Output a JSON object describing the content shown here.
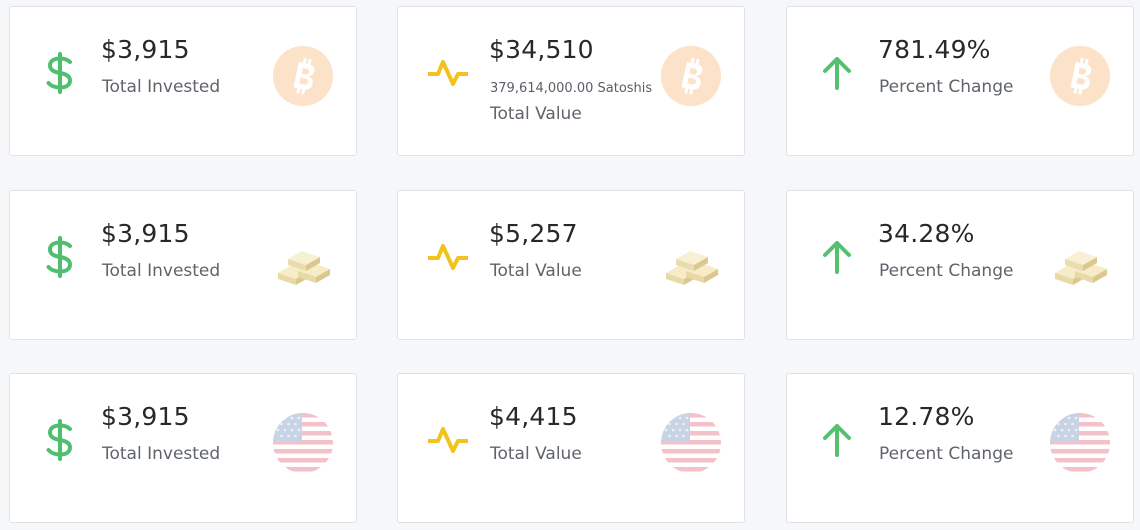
{
  "colors": {
    "dollar": "#4fbf6f",
    "pulse": "#f2c31c",
    "arrow": "#57c06f",
    "bitcoin": "#fbe2c8",
    "gold": "#f0e2b4",
    "flag_red": "#f3c1c7",
    "flag_blue": "#c9d3e6"
  },
  "rows": [
    {
      "asset": "bitcoin",
      "cards": [
        {
          "icon": "dollar-icon",
          "value": "$3,915",
          "label": "Total Invested"
        },
        {
          "icon": "pulse-icon",
          "value": "$34,510",
          "sub": "379,614,000.00 Satoshis",
          "label": "Total Value"
        },
        {
          "icon": "arrow-up-icon",
          "value": "781.49%",
          "label": "Percent Change"
        }
      ]
    },
    {
      "asset": "gold",
      "cards": [
        {
          "icon": "dollar-icon",
          "value": "$3,915",
          "label": "Total Invested"
        },
        {
          "icon": "pulse-icon",
          "value": "$5,257",
          "label": "Total Value"
        },
        {
          "icon": "arrow-up-icon",
          "value": "34.28%",
          "label": "Percent Change"
        }
      ]
    },
    {
      "asset": "usd",
      "cards": [
        {
          "icon": "dollar-icon",
          "value": "$3,915",
          "label": "Total Invested"
        },
        {
          "icon": "pulse-icon",
          "value": "$4,415",
          "label": "Total Value"
        },
        {
          "icon": "arrow-up-icon",
          "value": "12.78%",
          "label": "Percent Change"
        }
      ]
    }
  ]
}
